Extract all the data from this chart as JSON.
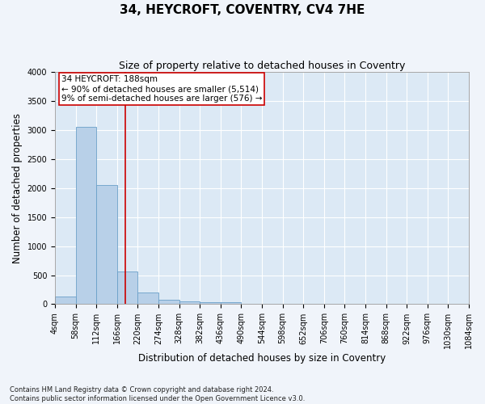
{
  "title": "34, HEYCROFT, COVENTRY, CV4 7HE",
  "subtitle": "Size of property relative to detached houses in Coventry",
  "xlabel": "Distribution of detached houses by size in Coventry",
  "ylabel": "Number of detached properties",
  "bar_color": "#b8d0e8",
  "bar_edge_color": "#6aa0c8",
  "background_color": "#dce9f5",
  "grid_color": "#ffffff",
  "annotation_text": "34 HEYCROFT: 188sqm\n← 90% of detached houses are smaller (5,514)\n9% of semi-detached houses are larger (576) →",
  "vline_x": 188,
  "vline_color": "#cc0000",
  "annotation_box_color": "#cc0000",
  "fig_background": "#f0f4fa",
  "footnote": "Contains HM Land Registry data © Crown copyright and database right 2024.\nContains public sector information licensed under the Open Government Licence v3.0.",
  "bin_edges": [
    4,
    58,
    112,
    166,
    220,
    274,
    328,
    382,
    436,
    490,
    544,
    598,
    652,
    706,
    760,
    814,
    868,
    922,
    976,
    1030,
    1084
  ],
  "bar_heights": [
    130,
    3060,
    2060,
    560,
    195,
    80,
    55,
    40,
    40,
    0,
    0,
    0,
    0,
    0,
    0,
    0,
    0,
    0,
    0,
    0
  ],
  "ylim": [
    0,
    4000
  ],
  "yticks": [
    0,
    500,
    1000,
    1500,
    2000,
    2500,
    3000,
    3500,
    4000
  ],
  "title_fontsize": 11,
  "subtitle_fontsize": 9,
  "axis_label_fontsize": 8.5,
  "tick_fontsize": 7,
  "annotation_fontsize": 7.5,
  "footnote_fontsize": 6
}
